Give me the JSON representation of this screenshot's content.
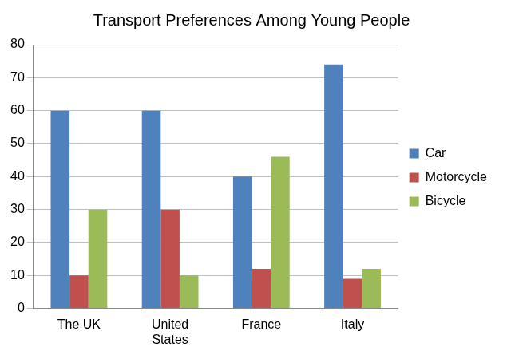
{
  "chart_data": {
    "type": "bar",
    "title": "Transport Preferences Among Young People",
    "categories": [
      "The UK",
      "United States",
      "France",
      "Italy"
    ],
    "series": [
      {
        "name": "Car",
        "color": "#4f81bd",
        "values": [
          60,
          60,
          40,
          74
        ]
      },
      {
        "name": "Motorcycle",
        "color": "#c0504d",
        "values": [
          10,
          30,
          12,
          9
        ]
      },
      {
        "name": "Bicycle",
        "color": "#9bbb59",
        "values": [
          30,
          10,
          46,
          12
        ]
      }
    ],
    "ylim": [
      0,
      80
    ],
    "yticks": [
      0,
      10,
      20,
      30,
      40,
      50,
      60,
      70,
      80
    ],
    "grid": true,
    "legend": "right"
  }
}
